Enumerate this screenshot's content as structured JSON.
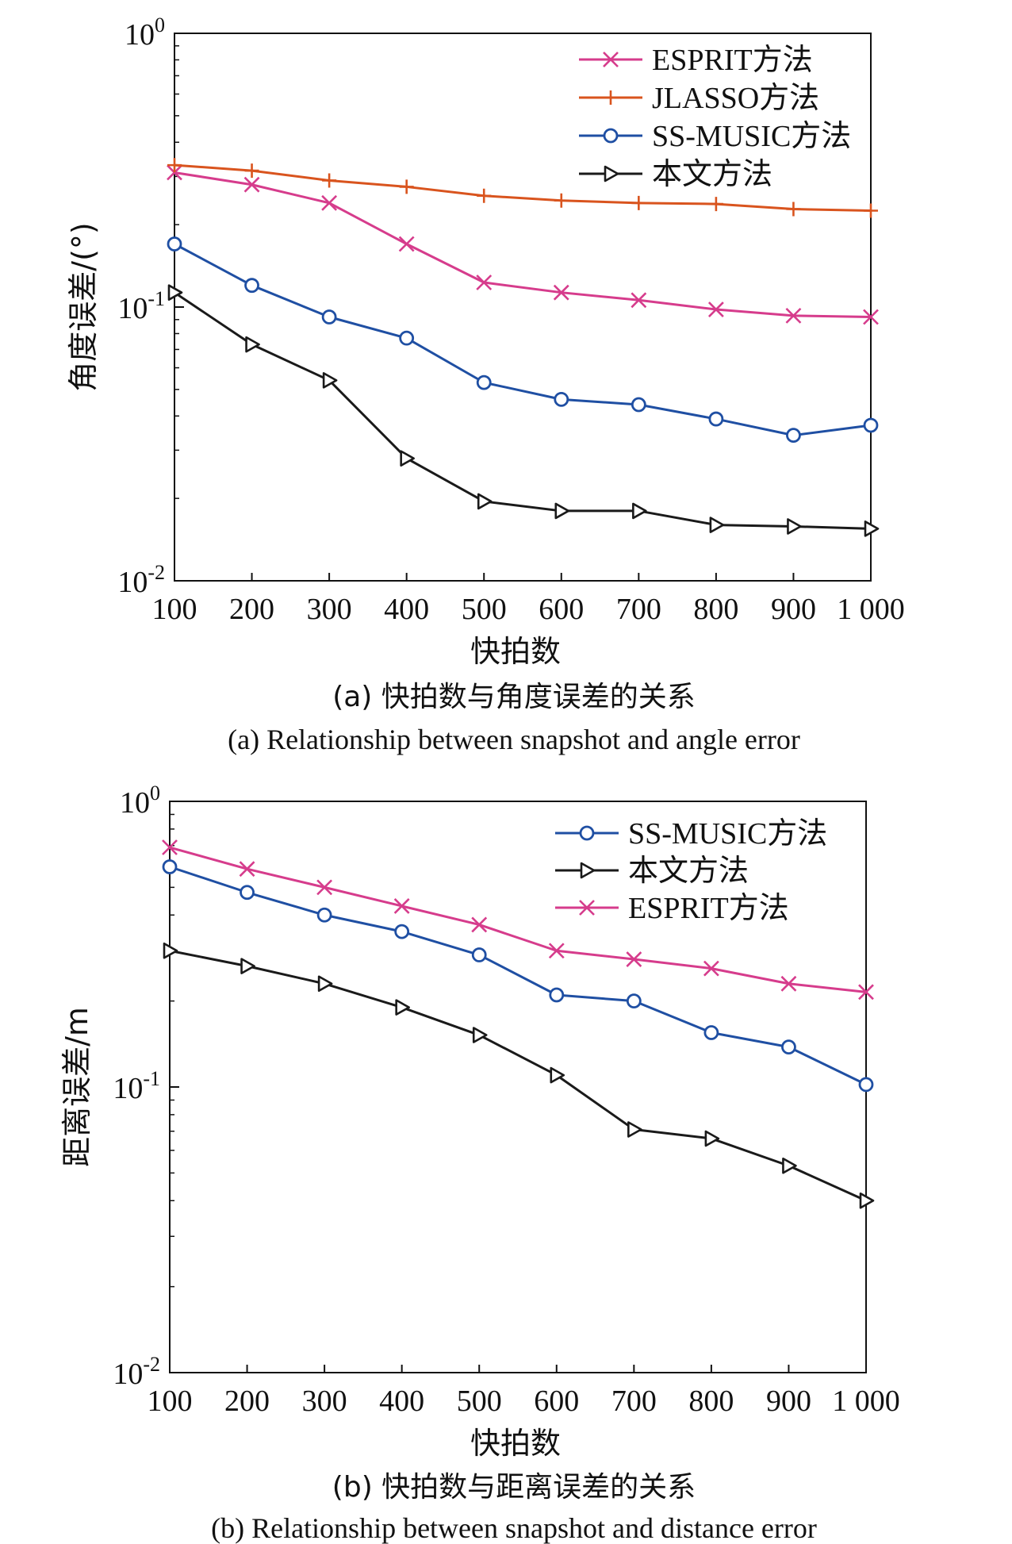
{
  "chart_data": [
    {
      "type": "line",
      "yscale": "log",
      "xlabel": "快拍数",
      "ylabel": "角度误差/(°)",
      "ylim": [
        0.01,
        1
      ],
      "xlim": [
        100,
        1000
      ],
      "x": [
        100,
        200,
        300,
        400,
        500,
        600,
        700,
        800,
        900,
        1000
      ],
      "x_tick_labels": [
        "100",
        "200",
        "300",
        "400",
        "500",
        "600",
        "700",
        "800",
        "900",
        "1 000"
      ],
      "y_tick_labels": [
        {
          "base": "10",
          "exp": "0"
        },
        {
          "base": "10",
          "exp": "-1"
        },
        {
          "base": "10",
          "exp": "-2"
        }
      ],
      "caption_cn": "(a) 快拍数与角度误差的关系",
      "caption_en": "(a) Relationship between snapshot and angle error",
      "legend_position": "top-right",
      "series": [
        {
          "name": "ESPRIT方法",
          "marker": "x",
          "color": "#d63c8c",
          "values": [
            0.31,
            0.28,
            0.24,
            0.17,
            0.123,
            0.113,
            0.106,
            0.098,
            0.093,
            0.092
          ]
        },
        {
          "name": "JLASSO方法",
          "marker": "+",
          "color": "#d9541e",
          "values": [
            0.33,
            0.315,
            0.29,
            0.275,
            0.255,
            0.245,
            0.24,
            0.238,
            0.228,
            0.225
          ]
        },
        {
          "name": "SS-MUSIC方法",
          "marker": "o",
          "color": "#1f4fa3",
          "values": [
            0.17,
            0.12,
            0.092,
            0.077,
            0.053,
            0.046,
            0.044,
            0.039,
            0.034,
            0.037
          ]
        },
        {
          "name": "本文方法",
          "marker": "tri-right",
          "color": "#1a1a1a",
          "values": [
            0.113,
            0.073,
            0.054,
            0.028,
            0.0195,
            0.018,
            0.018,
            0.016,
            0.0158,
            0.0155
          ]
        }
      ]
    },
    {
      "type": "line",
      "yscale": "log",
      "xlabel": "快拍数",
      "ylabel": "距离误差/m",
      "ylim": [
        0.01,
        1
      ],
      "xlim": [
        100,
        1000
      ],
      "x": [
        100,
        200,
        300,
        400,
        500,
        600,
        700,
        800,
        900,
        1000
      ],
      "x_tick_labels": [
        "100",
        "200",
        "300",
        "400",
        "500",
        "600",
        "700",
        "800",
        "900",
        "1 000"
      ],
      "y_tick_labels": [
        {
          "base": "10",
          "exp": "0"
        },
        {
          "base": "10",
          "exp": "-1"
        },
        {
          "base": "10",
          "exp": "-2"
        }
      ],
      "caption_cn": "(b) 快拍数与距离误差的关系",
      "caption_en": "(b) Relationship between snapshot and distance error",
      "legend_position": "top-right",
      "series": [
        {
          "name": "SS-MUSIC方法",
          "marker": "o",
          "color": "#1f4fa3",
          "values": [
            0.59,
            0.48,
            0.4,
            0.35,
            0.29,
            0.21,
            0.2,
            0.155,
            0.138,
            0.102
          ]
        },
        {
          "name": "本文方法",
          "marker": "tri-right",
          "color": "#1a1a1a",
          "values": [
            0.3,
            0.265,
            0.23,
            0.19,
            0.152,
            0.11,
            0.071,
            0.066,
            0.053,
            0.04
          ]
        },
        {
          "name": "ESPRIT方法",
          "marker": "x",
          "color": "#d63c8c",
          "values": [
            0.69,
            0.58,
            0.5,
            0.43,
            0.37,
            0.3,
            0.28,
            0.26,
            0.23,
            0.215
          ]
        }
      ]
    }
  ]
}
